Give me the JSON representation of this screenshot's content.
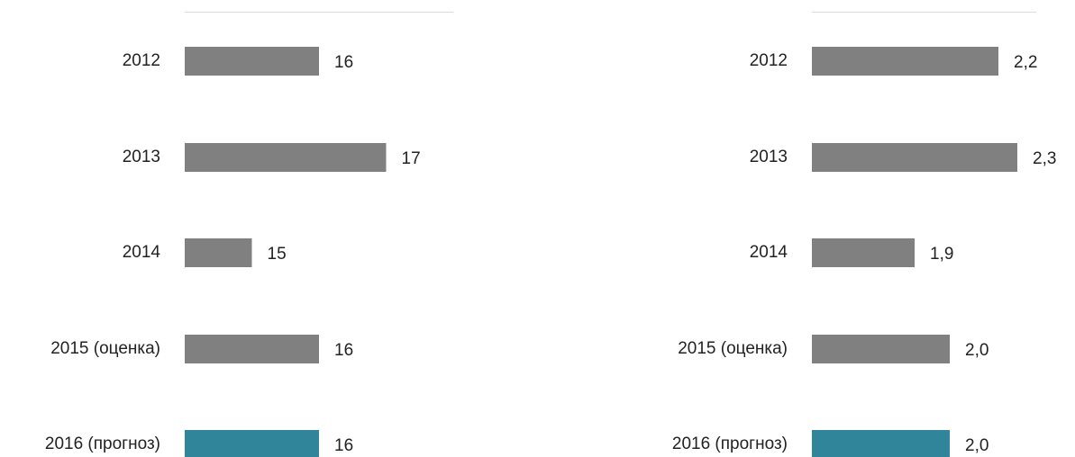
{
  "chart_data": [
    {
      "type": "bar",
      "orientation": "horizontal",
      "categories": [
        "2012",
        "2013",
        "2014",
        "2015 (оценка)",
        "2016 (прогноз)"
      ],
      "values": [
        16,
        17,
        15,
        16,
        16
      ],
      "colors": [
        "#808080",
        "#808080",
        "#808080",
        "#808080",
        "#31859b"
      ],
      "xlim": [
        14,
        18
      ]
    },
    {
      "type": "bar",
      "orientation": "horizontal",
      "categories": [
        "2012",
        "2013",
        "2014",
        "2015 (оценка)",
        "2016 (прогноз)"
      ],
      "values": [
        2.19,
        2.26,
        1.88,
        2.01,
        2.01
      ],
      "value_labels": [
        "2,2",
        "2,3",
        "1,9",
        "2,0",
        "2,0"
      ],
      "colors": [
        "#808080",
        "#808080",
        "#808080",
        "#808080",
        "#31859b"
      ],
      "xlim": [
        1.5,
        2.33
      ]
    }
  ]
}
